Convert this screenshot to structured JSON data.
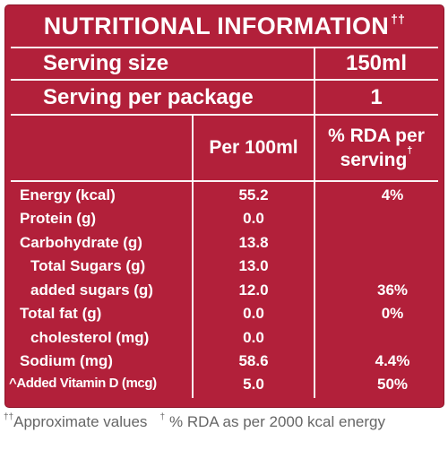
{
  "title": "NUTRITIONAL INFORMATION",
  "title_mark": "††",
  "serving_size": {
    "label": "Serving size",
    "value": "150ml"
  },
  "serving_per_package": {
    "label": "Serving per package",
    "value": "1"
  },
  "columns": {
    "per100": "Per 100ml",
    "rda_line1": "% RDA per",
    "rda_line2": "serving",
    "rda_mark": "†"
  },
  "rows": [
    {
      "label": "Energy (kcal)",
      "per100": "55.2",
      "rda": "4%"
    },
    {
      "label": "Protein (g)",
      "per100": "0.0",
      "rda": ""
    },
    {
      "label": "Carbohydrate (g)",
      "per100": "13.8",
      "rda": ""
    },
    {
      "label": "Total Sugars (g)",
      "per100": "13.0",
      "rda": ""
    },
    {
      "label": "added sugars (g)",
      "per100": "12.0",
      "rda": "36%"
    },
    {
      "label": "Total fat (g)",
      "per100": "0.0",
      "rda": "0%"
    },
    {
      "label": "cholesterol (mg)",
      "per100": "0.0",
      "rda": ""
    },
    {
      "label": "Sodium (mg)",
      "per100": "58.6",
      "rda": "4.4%"
    },
    {
      "label": "^Added Vitamin D (mcg)",
      "per100": "5.0",
      "rda": "50%"
    }
  ],
  "footnote": {
    "mark1": "††",
    "text1": "Approximate values",
    "mark2": "†",
    "text2": "% RDA as per 2000 kcal energy"
  },
  "colors": {
    "panel": "#b2203a",
    "text": "#ffffff",
    "footnote": "#666666"
  }
}
